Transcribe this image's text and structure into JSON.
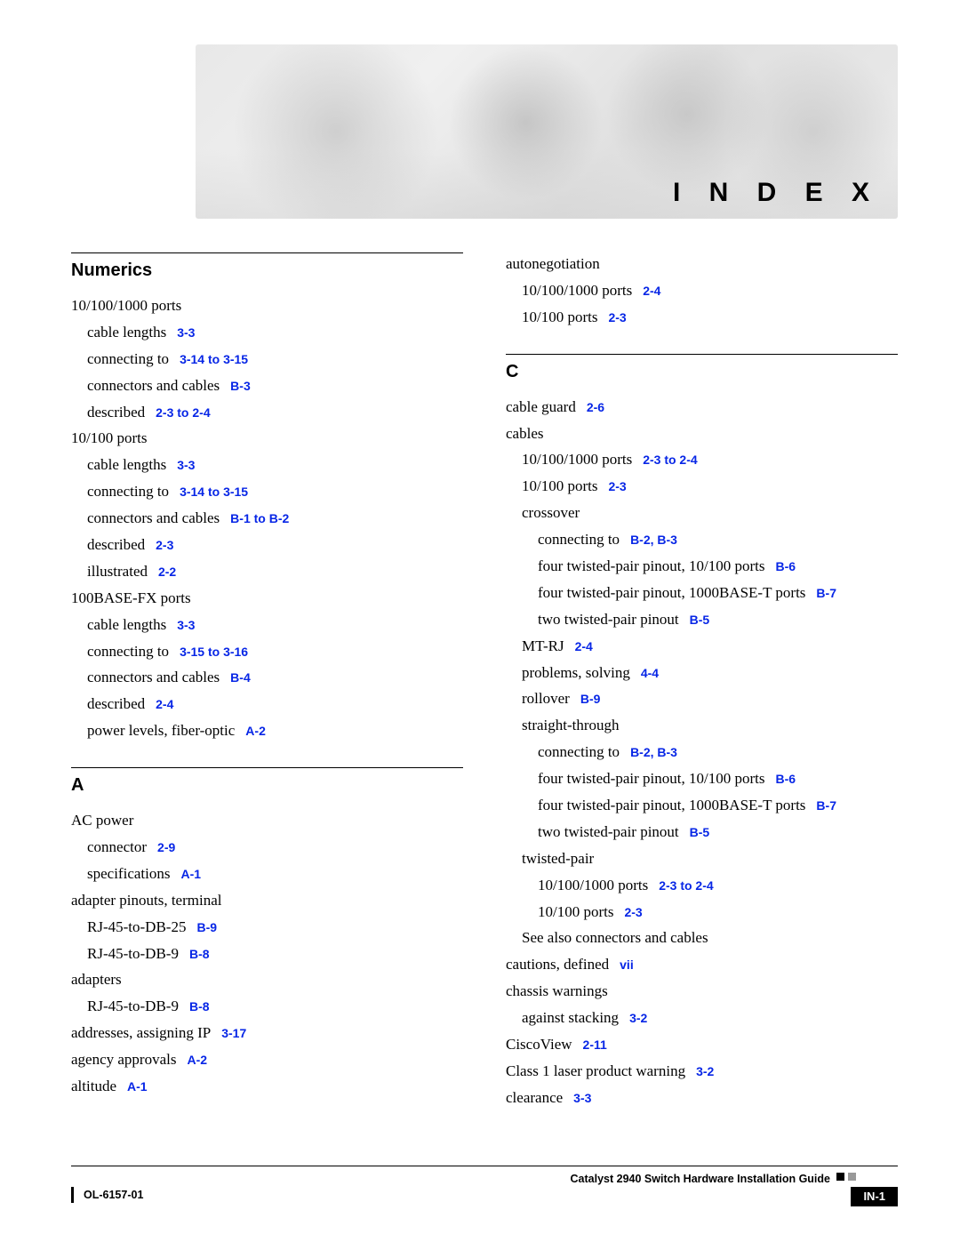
{
  "banner_title": "I N D E X",
  "footer": {
    "doc_title": "Catalyst 2940 Switch Hardware Installation Guide",
    "ol": "OL-6157-01",
    "page": "IN-1"
  },
  "link_color": "#0726e6",
  "left_sections": [
    {
      "head": "Numerics",
      "entries": [
        {
          "indent": 1,
          "term": "10/100/1000 ports"
        },
        {
          "indent": 2,
          "term": "cable lengths",
          "link": "3-3"
        },
        {
          "indent": 2,
          "term": "connecting to",
          "link": "3-14 to 3-15"
        },
        {
          "indent": 2,
          "term": "connectors and cables",
          "link": "B-3"
        },
        {
          "indent": 2,
          "term": "described",
          "link": "2-3 to 2-4"
        },
        {
          "indent": 1,
          "term": "10/100 ports"
        },
        {
          "indent": 2,
          "term": "cable lengths",
          "link": "3-3"
        },
        {
          "indent": 2,
          "term": "connecting to",
          "link": "3-14 to 3-15"
        },
        {
          "indent": 2,
          "term": "connectors and cables",
          "link": "B-1 to B-2"
        },
        {
          "indent": 2,
          "term": "described",
          "link": "2-3"
        },
        {
          "indent": 2,
          "term": "illustrated",
          "link": "2-2"
        },
        {
          "indent": 1,
          "term": "100BASE-FX ports"
        },
        {
          "indent": 2,
          "term": "cable lengths",
          "link": "3-3"
        },
        {
          "indent": 2,
          "term": "connecting to",
          "link": "3-15 to 3-16"
        },
        {
          "indent": 2,
          "term": "connectors and cables",
          "link": "B-4"
        },
        {
          "indent": 2,
          "term": "described",
          "link": "2-4"
        },
        {
          "indent": 2,
          "term": "power levels, fiber-optic",
          "link": "A-2"
        }
      ]
    },
    {
      "head": "A",
      "entries": [
        {
          "indent": 1,
          "term": "AC power"
        },
        {
          "indent": 2,
          "term": "connector",
          "link": "2-9"
        },
        {
          "indent": 2,
          "term": "specifications",
          "link": "A-1"
        },
        {
          "indent": 1,
          "term": "adapter pinouts, terminal"
        },
        {
          "indent": 2,
          "term": "RJ-45-to-DB-25",
          "link": "B-9"
        },
        {
          "indent": 2,
          "term": "RJ-45-to-DB-9",
          "link": "B-8"
        },
        {
          "indent": 1,
          "term": "adapters"
        },
        {
          "indent": 2,
          "term": "RJ-45-to-DB-9",
          "link": "B-8"
        },
        {
          "indent": 1,
          "term": "addresses, assigning IP",
          "link": "3-17"
        },
        {
          "indent": 1,
          "term": "agency approvals",
          "link": "A-2"
        },
        {
          "indent": 1,
          "term": "altitude",
          "link": "A-1"
        }
      ]
    }
  ],
  "right_sections": [
    {
      "head": null,
      "entries": [
        {
          "indent": 1,
          "term": "autonegotiation"
        },
        {
          "indent": 2,
          "term": "10/100/1000 ports",
          "link": "2-4"
        },
        {
          "indent": 2,
          "term": "10/100 ports",
          "link": "2-3"
        }
      ]
    },
    {
      "head": "C",
      "entries": [
        {
          "indent": 1,
          "term": "cable guard",
          "link": "2-6"
        },
        {
          "indent": 1,
          "term": "cables"
        },
        {
          "indent": 2,
          "term": "10/100/1000 ports",
          "link": "2-3 to 2-4"
        },
        {
          "indent": 2,
          "term": "10/100 ports",
          "link": "2-3"
        },
        {
          "indent": 2,
          "term": "crossover"
        },
        {
          "indent": 3,
          "term": "connecting to",
          "link": "B-2, B-3"
        },
        {
          "indent": 3,
          "term": "four twisted-pair pinout, 10/100 ports",
          "link": "B-6"
        },
        {
          "indent": 3,
          "term": "four twisted-pair pinout, 1000BASE-T ports",
          "link": "B-7"
        },
        {
          "indent": 3,
          "term": "two twisted-pair pinout",
          "link": "B-5"
        },
        {
          "indent": 2,
          "term": "MT-RJ",
          "link": "2-4"
        },
        {
          "indent": 2,
          "term": "problems, solving",
          "link": "4-4"
        },
        {
          "indent": 2,
          "term": "rollover",
          "link": "B-9"
        },
        {
          "indent": 2,
          "term": "straight-through"
        },
        {
          "indent": 3,
          "term": "connecting to",
          "link": "B-2, B-3"
        },
        {
          "indent": 3,
          "term": "four twisted-pair pinout, 10/100 ports",
          "link": "B-6"
        },
        {
          "indent": 3,
          "term": "four twisted-pair pinout, 1000BASE-T ports",
          "link": "B-7"
        },
        {
          "indent": 3,
          "term": "two twisted-pair pinout",
          "link": "B-5"
        },
        {
          "indent": 2,
          "term": "twisted-pair"
        },
        {
          "indent": 3,
          "term": "10/100/1000 ports",
          "link": "2-3 to 2-4"
        },
        {
          "indent": 3,
          "term": "10/100 ports",
          "link": "2-3"
        },
        {
          "indent": 2,
          "term": "See also connectors and cables"
        },
        {
          "indent": 1,
          "term": "cautions, defined",
          "link": "vii"
        },
        {
          "indent": 1,
          "term": "chassis warnings"
        },
        {
          "indent": 2,
          "term": "against stacking",
          "link": "3-2"
        },
        {
          "indent": 1,
          "term": "CiscoView",
          "link": "2-11"
        },
        {
          "indent": 1,
          "term": "Class 1 laser product warning",
          "link": "3-2"
        },
        {
          "indent": 1,
          "term": "clearance",
          "link": "3-3"
        }
      ]
    }
  ]
}
